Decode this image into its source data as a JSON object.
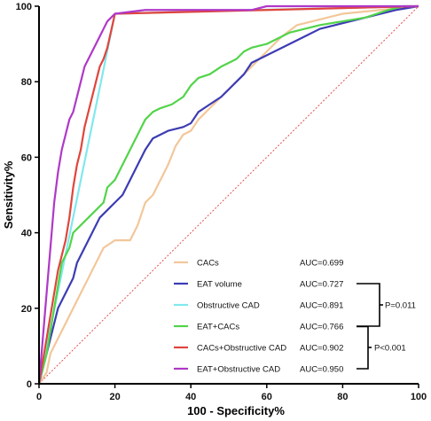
{
  "chart_data": {
    "type": "line",
    "xlabel": "100 - Specificity%",
    "ylabel": "Sensitivity%",
    "xlim": [
      0,
      100
    ],
    "ylim": [
      0,
      100
    ],
    "x_ticks": [
      "0",
      "20",
      "40",
      "60",
      "80",
      "100"
    ],
    "y_ticks": [
      "0",
      "20",
      "40",
      "60",
      "80",
      "100"
    ],
    "grid": false,
    "legend_position": "bottom-right",
    "reference_line": {
      "color": "#e05050",
      "style": "dotted",
      "points": [
        [
          0,
          0
        ],
        [
          100,
          100
        ]
      ]
    },
    "series": [
      {
        "name": "CACs",
        "auc": "AUC=0.699",
        "color": "#f2c79a",
        "points": [
          [
            0,
            0
          ],
          [
            2,
            3
          ],
          [
            3,
            8
          ],
          [
            5,
            12
          ],
          [
            7,
            16
          ],
          [
            9,
            20
          ],
          [
            11,
            24
          ],
          [
            13,
            28
          ],
          [
            15,
            32
          ],
          [
            17,
            36
          ],
          [
            20,
            38
          ],
          [
            24,
            38
          ],
          [
            26,
            42
          ],
          [
            28,
            48
          ],
          [
            30,
            50
          ],
          [
            32,
            54
          ],
          [
            34,
            58
          ],
          [
            36,
            63
          ],
          [
            38,
            66
          ],
          [
            40,
            67
          ],
          [
            42,
            70
          ],
          [
            45,
            73
          ],
          [
            48,
            76
          ],
          [
            52,
            80
          ],
          [
            56,
            84
          ],
          [
            60,
            88
          ],
          [
            64,
            92
          ],
          [
            68,
            95
          ],
          [
            72,
            96
          ],
          [
            80,
            98
          ],
          [
            90,
            99
          ],
          [
            100,
            100
          ]
        ]
      },
      {
        "name": "EAT volume",
        "auc": "AUC=0.727",
        "color": "#3c3cb4",
        "points": [
          [
            0,
            0
          ],
          [
            1,
            4
          ],
          [
            2,
            8
          ],
          [
            3,
            12
          ],
          [
            4,
            16
          ],
          [
            5,
            20
          ],
          [
            7,
            24
          ],
          [
            9,
            28
          ],
          [
            10,
            32
          ],
          [
            12,
            36
          ],
          [
            14,
            40
          ],
          [
            16,
            44
          ],
          [
            18,
            46
          ],
          [
            20,
            48
          ],
          [
            22,
            50
          ],
          [
            24,
            54
          ],
          [
            26,
            58
          ],
          [
            28,
            62
          ],
          [
            30,
            65
          ],
          [
            32,
            66
          ],
          [
            34,
            67
          ],
          [
            38,
            68
          ],
          [
            40,
            69
          ],
          [
            42,
            72
          ],
          [
            45,
            74
          ],
          [
            48,
            76
          ],
          [
            50,
            78
          ],
          [
            52,
            80
          ],
          [
            54,
            82
          ],
          [
            56,
            85
          ],
          [
            58,
            86
          ],
          [
            62,
            88
          ],
          [
            66,
            90
          ],
          [
            70,
            92
          ],
          [
            74,
            94
          ],
          [
            78,
            95
          ],
          [
            82,
            96
          ],
          [
            86,
            97
          ],
          [
            90,
            98
          ],
          [
            94,
            99
          ],
          [
            100,
            100
          ]
        ]
      },
      {
        "name": "Obstructive CAD",
        "auc": "AUC=0.891",
        "color": "#80e8ee",
        "points": [
          [
            0,
            0
          ],
          [
            20,
            98
          ],
          [
            57,
            99
          ],
          [
            100,
            100
          ]
        ]
      },
      {
        "name": "EAT+CACs",
        "auc": "AUC=0.766",
        "color": "#52d44a",
        "points": [
          [
            0,
            0
          ],
          [
            1,
            4
          ],
          [
            2,
            8
          ],
          [
            3,
            14
          ],
          [
            4,
            20
          ],
          [
            5,
            26
          ],
          [
            6,
            32
          ],
          [
            8,
            36
          ],
          [
            9,
            40
          ],
          [
            11,
            42
          ],
          [
            13,
            44
          ],
          [
            15,
            46
          ],
          [
            17,
            48
          ],
          [
            18,
            52
          ],
          [
            20,
            54
          ],
          [
            22,
            58
          ],
          [
            24,
            62
          ],
          [
            26,
            66
          ],
          [
            28,
            70
          ],
          [
            30,
            72
          ],
          [
            32,
            73
          ],
          [
            35,
            74
          ],
          [
            38,
            76
          ],
          [
            40,
            79
          ],
          [
            42,
            81
          ],
          [
            45,
            82
          ],
          [
            48,
            84
          ],
          [
            50,
            85
          ],
          [
            52,
            86
          ],
          [
            54,
            88
          ],
          [
            56,
            89
          ],
          [
            60,
            90
          ],
          [
            64,
            92
          ],
          [
            66,
            93
          ],
          [
            70,
            94
          ],
          [
            74,
            95
          ],
          [
            80,
            96
          ],
          [
            86,
            97
          ],
          [
            92,
            99
          ],
          [
            96,
            100
          ],
          [
            100,
            100
          ]
        ]
      },
      {
        "name": "CACs+Obstructive CAD",
        "auc": "AUC=0.902",
        "color": "#e0453c",
        "points": [
          [
            0,
            0
          ],
          [
            1,
            6
          ],
          [
            2,
            12
          ],
          [
            3,
            18
          ],
          [
            4,
            24
          ],
          [
            5,
            30
          ],
          [
            6,
            34
          ],
          [
            7,
            38
          ],
          [
            8,
            44
          ],
          [
            9,
            52
          ],
          [
            10,
            58
          ],
          [
            11,
            62
          ],
          [
            12,
            68
          ],
          [
            13,
            72
          ],
          [
            14,
            76
          ],
          [
            15,
            80
          ],
          [
            16,
            84
          ],
          [
            17,
            86
          ],
          [
            18,
            89
          ],
          [
            20,
            98
          ],
          [
            60,
            99
          ],
          [
            100,
            100
          ]
        ]
      },
      {
        "name": "EAT+Obstructive CAD",
        "auc": "AUC=0.950",
        "color": "#b038c8",
        "points": [
          [
            0,
            0
          ],
          [
            1,
            12
          ],
          [
            2,
            24
          ],
          [
            3,
            36
          ],
          [
            4,
            48
          ],
          [
            5,
            56
          ],
          [
            6,
            62
          ],
          [
            7,
            66
          ],
          [
            8,
            70
          ],
          [
            9,
            72
          ],
          [
            10,
            76
          ],
          [
            11,
            80
          ],
          [
            12,
            84
          ],
          [
            13,
            86
          ],
          [
            14,
            88
          ],
          [
            15,
            90
          ],
          [
            16,
            92
          ],
          [
            17,
            94
          ],
          [
            18,
            96
          ],
          [
            20,
            98
          ],
          [
            28,
            99
          ],
          [
            56,
            99
          ],
          [
            60,
            100
          ],
          [
            100,
            100
          ]
        ]
      }
    ],
    "comparisons": [
      {
        "label": "P=0.011",
        "from": "EAT volume",
        "to": "EAT+CACs"
      },
      {
        "label": "P<0.001",
        "from": "EAT+CACs",
        "to": "EAT+Obstructive CAD"
      }
    ]
  }
}
